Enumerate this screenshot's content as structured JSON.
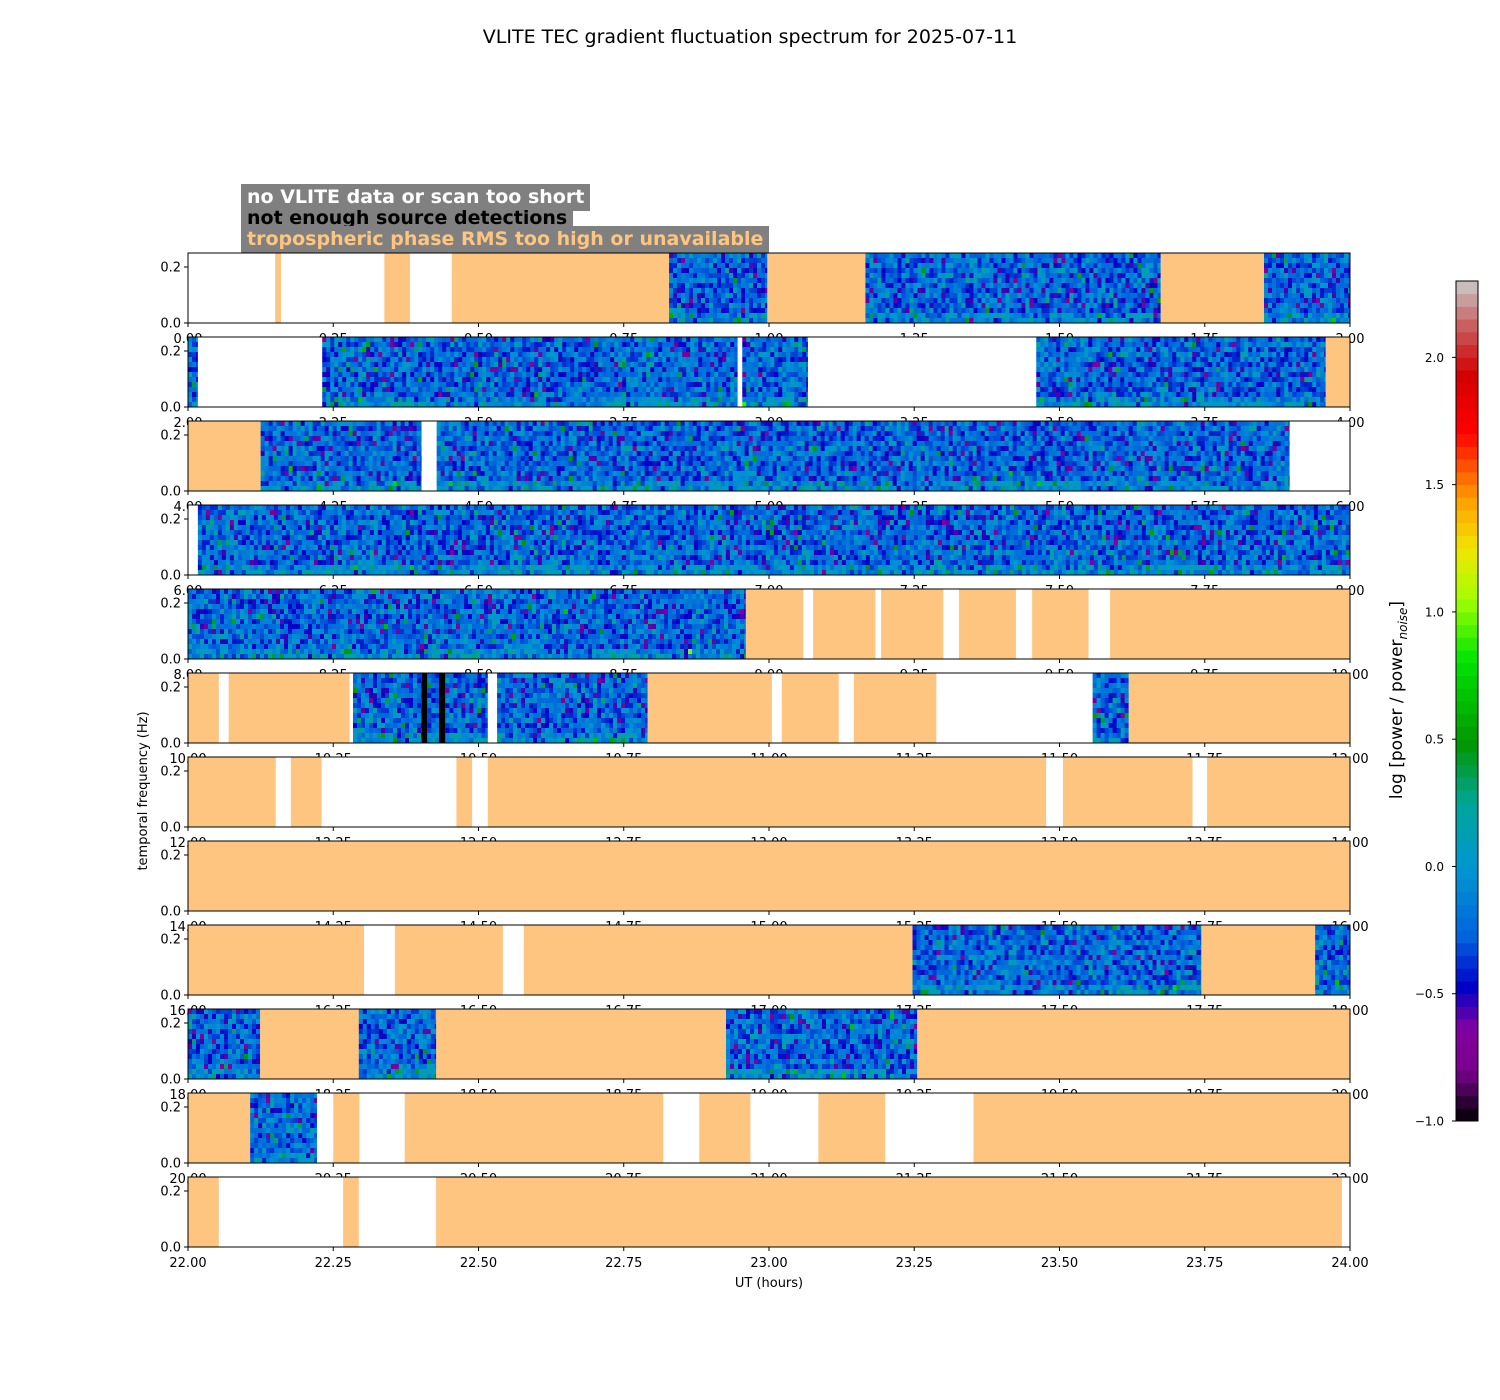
{
  "title": "VLITE TEC gradient fluctuation spectrum for 2025-07-11",
  "legend": {
    "no_data": {
      "label": "no VLITE data or scan too short",
      "text_color": "#ffffff"
    },
    "few_sources": {
      "label": "not enough source detections",
      "text_color": "#000000"
    },
    "tropo": {
      "label": "tropospheric phase RMS too high or unavailable",
      "text_color": "#fdc57f"
    },
    "box_color": "#808080"
  },
  "colors": {
    "tropo": "#fdc57f",
    "no_data": "#ffffff",
    "few_sources": "#000000"
  },
  "chart_data": {
    "type": "heatmap",
    "title": "VLITE TEC gradient fluctuation spectrum for 2025-07-11",
    "xlabel": "UT (hours)",
    "ylabel": "temporal frequency (Hz)",
    "ylim": [
      0,
      0.25
    ],
    "yticks": [
      "0.0",
      "0.2"
    ],
    "colorbar": {
      "label": "log [power / power",
      "label_sub": "noise",
      "label_end": "]",
      "vmin": -1.0,
      "vmax": 2.3,
      "ticks": [
        "−1.0",
        "−0.5",
        "0.0",
        "0.5",
        "1.0",
        "1.5",
        "2.0"
      ],
      "tick_values": [
        -1.0,
        -0.5,
        0.0,
        0.5,
        1.0,
        1.5,
        2.0
      ]
    },
    "panels": [
      {
        "range": [
          0,
          2
        ],
        "ticks": [
          "0.00",
          "0.25",
          "0.50",
          "0.75",
          "1.00",
          "1.25",
          "1.50",
          "1.75",
          "2.00"
        ],
        "segments": [
          [
            "white",
            0,
            0.15
          ],
          [
            "tropo",
            0.15,
            0.16
          ],
          [
            "white",
            0.16,
            0.338
          ],
          [
            "tropo",
            0.338,
            0.382
          ],
          [
            "white",
            0.382,
            0.454
          ],
          [
            "tropo",
            0.454,
            0.828
          ],
          [
            "data",
            0.828,
            0.997
          ],
          [
            "tropo",
            0.997,
            1.166
          ],
          [
            "data",
            1.166,
            1.674
          ],
          [
            "tropo",
            1.674,
            1.852
          ],
          [
            "data",
            1.852,
            2.0
          ]
        ]
      },
      {
        "range": [
          2,
          4
        ],
        "ticks": [
          "2.00",
          "2.25",
          "2.50",
          "2.75",
          "3.00",
          "3.25",
          "3.50",
          "3.75",
          "4.00"
        ],
        "segments": [
          [
            "data",
            2.0,
            2.017
          ],
          [
            "white",
            2.017,
            2.231
          ],
          [
            "data",
            2.231,
            2.946
          ],
          [
            "white",
            2.946,
            2.954
          ],
          [
            "data",
            2.954,
            3.067
          ],
          [
            "white",
            3.067,
            3.46
          ],
          [
            "data",
            3.46,
            3.958
          ],
          [
            "tropo",
            3.958,
            4.0
          ]
        ]
      },
      {
        "range": [
          4,
          6
        ],
        "ticks": [
          "4.00",
          "4.25",
          "4.50",
          "4.75",
          "5.00",
          "5.25",
          "5.50",
          "5.75",
          "6.00"
        ],
        "segments": [
          [
            "tropo",
            4.0,
            4.125
          ],
          [
            "data",
            4.125,
            4.402
          ],
          [
            "white",
            4.402,
            4.428
          ],
          [
            "data",
            4.428,
            5.896
          ],
          [
            "white",
            5.896,
            6.0
          ]
        ]
      },
      {
        "range": [
          6,
          8
        ],
        "ticks": [
          "6.00",
          "6.25",
          "6.50",
          "6.75",
          "7.00",
          "7.25",
          "7.50",
          "7.75",
          "8.00"
        ],
        "segments": [
          [
            "white",
            6.0,
            6.017
          ],
          [
            "data",
            6.017,
            8.0
          ]
        ]
      },
      {
        "range": [
          8,
          10
        ],
        "ticks": [
          "8.00",
          "8.25",
          "8.50",
          "8.75",
          "9.00",
          "9.25",
          "9.50",
          "9.75",
          "10.00"
        ],
        "segments": [
          [
            "data",
            8.0,
            8.96
          ],
          [
            "tropo",
            8.96,
            9.059
          ],
          [
            "white",
            9.059,
            9.076
          ],
          [
            "tropo",
            9.076,
            9.183
          ],
          [
            "white",
            9.183,
            9.193
          ],
          [
            "tropo",
            9.193,
            9.3
          ],
          [
            "white",
            9.3,
            9.327
          ],
          [
            "tropo",
            9.327,
            9.425
          ],
          [
            "white",
            9.425,
            9.453
          ],
          [
            "tropo",
            9.453,
            9.55
          ],
          [
            "white",
            9.55,
            9.587
          ],
          [
            "tropo",
            9.587,
            10.0
          ]
        ]
      },
      {
        "range": [
          10,
          12
        ],
        "ticks": [
          "10.00",
          "10.25",
          "10.50",
          "10.75",
          "11.00",
          "11.25",
          "11.50",
          "11.75",
          "12.00"
        ],
        "segments": [
          [
            "tropo",
            10.0,
            10.053
          ],
          [
            "white",
            10.053,
            10.07
          ],
          [
            "tropo",
            10.07,
            10.278
          ],
          [
            "white",
            10.278,
            10.284
          ],
          [
            "data",
            10.284,
            10.402
          ],
          [
            "black",
            10.402,
            10.412
          ],
          [
            "data",
            10.412,
            10.432
          ],
          [
            "black",
            10.432,
            10.443
          ],
          [
            "data",
            10.443,
            10.516
          ],
          [
            "white",
            10.516,
            10.532
          ],
          [
            "data",
            10.532,
            10.791
          ],
          [
            "tropo",
            10.791,
            11.005
          ],
          [
            "white",
            11.005,
            11.022
          ],
          [
            "tropo",
            11.022,
            11.12
          ],
          [
            "white",
            11.12,
            11.146
          ],
          [
            "tropo",
            11.146,
            11.288
          ],
          [
            "white",
            11.288,
            11.557
          ],
          [
            "data",
            11.557,
            11.619
          ],
          [
            "tropo",
            11.619,
            12.0
          ]
        ]
      },
      {
        "range": [
          12,
          14
        ],
        "ticks": [
          "12.00",
          "12.25",
          "12.50",
          "12.75",
          "13.00",
          "13.25",
          "13.50",
          "13.75",
          "14.00"
        ],
        "segments": [
          [
            "tropo",
            12.0,
            12.151
          ],
          [
            "white",
            12.151,
            12.177
          ],
          [
            "tropo",
            12.177,
            12.23
          ],
          [
            "white",
            12.23,
            12.462
          ],
          [
            "tropo",
            12.462,
            12.489
          ],
          [
            "white",
            12.489,
            12.516
          ],
          [
            "tropo",
            12.516,
            13.477
          ],
          [
            "white",
            13.477,
            13.506
          ],
          [
            "tropo",
            13.506,
            13.729
          ],
          [
            "white",
            13.729,
            13.754
          ],
          [
            "tropo",
            13.754,
            14.0
          ]
        ]
      },
      {
        "range": [
          14,
          16
        ],
        "ticks": [
          "14.00",
          "14.25",
          "14.50",
          "14.75",
          "15.00",
          "15.25",
          "15.50",
          "15.75",
          "16.00"
        ],
        "segments": [
          [
            "tropo",
            14.0,
            16.0
          ]
        ]
      },
      {
        "range": [
          16,
          18
        ],
        "ticks": [
          "16.00",
          "16.25",
          "16.50",
          "16.75",
          "17.00",
          "17.25",
          "17.50",
          "17.75",
          "18.00"
        ],
        "segments": [
          [
            "tropo",
            16.0,
            16.303
          ],
          [
            "white",
            16.303,
            16.356
          ],
          [
            "tropo",
            16.356,
            16.542
          ],
          [
            "white",
            16.542,
            16.578
          ],
          [
            "tropo",
            16.578,
            17.247
          ],
          [
            "data",
            17.247,
            17.744
          ],
          [
            "tropo",
            17.744,
            17.94
          ],
          [
            "data",
            17.94,
            18.0
          ]
        ]
      },
      {
        "range": [
          18,
          20
        ],
        "ticks": [
          "18.00",
          "18.25",
          "18.50",
          "18.75",
          "19.00",
          "19.25",
          "19.50",
          "19.75",
          "20.00"
        ],
        "segments": [
          [
            "data",
            18.0,
            18.124
          ],
          [
            "tropo",
            18.124,
            18.294
          ],
          [
            "data",
            18.294,
            18.427
          ],
          [
            "tropo",
            18.427,
            18.926
          ],
          [
            "data",
            18.926,
            19.255
          ],
          [
            "tropo",
            19.255,
            20.0
          ]
        ]
      },
      {
        "range": [
          20,
          22
        ],
        "ticks": [
          "20.00",
          "20.25",
          "20.50",
          "20.75",
          "21.00",
          "21.25",
          "21.50",
          "21.75",
          "22.00"
        ],
        "segments": [
          [
            "tropo",
            20.0,
            20.107
          ],
          [
            "data",
            20.107,
            20.222
          ],
          [
            "white",
            20.222,
            20.25
          ],
          [
            "tropo",
            20.25,
            20.295
          ],
          [
            "white",
            20.295,
            20.373
          ],
          [
            "tropo",
            20.373,
            20.818
          ],
          [
            "white",
            20.818,
            20.88
          ],
          [
            "tropo",
            20.88,
            20.968
          ],
          [
            "white",
            20.968,
            21.085
          ],
          [
            "tropo",
            21.085,
            21.2
          ],
          [
            "white",
            21.2,
            21.352
          ],
          [
            "tropo",
            21.352,
            22.0
          ]
        ]
      },
      {
        "range": [
          22,
          24
        ],
        "ticks": [
          "22.00",
          "22.25",
          "22.50",
          "22.75",
          "23.00",
          "23.25",
          "23.50",
          "23.75",
          "24.00"
        ],
        "segments": [
          [
            "tropo",
            22.0,
            22.053
          ],
          [
            "white",
            22.053,
            22.267
          ],
          [
            "tropo",
            22.267,
            22.294
          ],
          [
            "white",
            22.294,
            22.427
          ],
          [
            "tropo",
            22.427,
            23.986
          ],
          [
            "white",
            23.986,
            24.0
          ]
        ]
      }
    ]
  }
}
